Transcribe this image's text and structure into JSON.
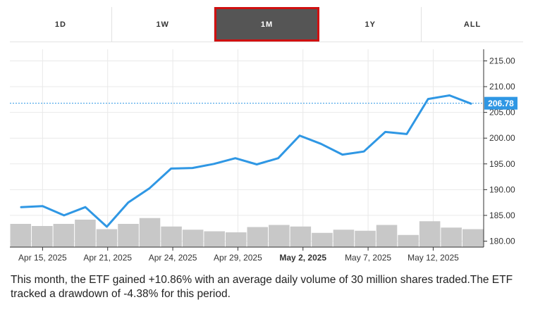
{
  "tabs": [
    {
      "label": "1D",
      "active": false
    },
    {
      "label": "1W",
      "active": false
    },
    {
      "label": "1M",
      "active": true
    },
    {
      "label": "1Y",
      "active": false
    },
    {
      "label": "ALL",
      "active": false
    }
  ],
  "summary_text": "This month, the ETF gained +10.86% with an average daily volume of 30 million shares traded.The ETF tracked a drawdown of -4.38% for this period.",
  "colors": {
    "price_line": "#2f97e4",
    "volume_bar": "#c8c8c8",
    "active_tab_bg": "#555555",
    "active_tab_border": "#d01010",
    "current_price_tag": "#2f97e4"
  },
  "chart_data": {
    "type": "line",
    "x_tick_labels": [
      "Apr 15, 2025",
      "Apr 21, 2025",
      "Apr 24, 2025",
      "Apr 29, 2025",
      "May 2, 2025",
      "May 7, 2025",
      "May 12, 2025"
    ],
    "x_tick_bold": [
      false,
      false,
      false,
      false,
      true,
      false,
      false
    ],
    "y_tick_labels": [
      "215.00",
      "210.00",
      "205.00",
      "200.00",
      "195.00",
      "190.00",
      "185.00",
      "180.00"
    ],
    "ylim": [
      180,
      215
    ],
    "current_price": 206.78,
    "current_price_label": "206.78",
    "series": [
      {
        "values": [
          186.6,
          186.8,
          185.0,
          186.6,
          182.8,
          187.5,
          190.3,
          194.1,
          194.2,
          195.0,
          196.1,
          194.9,
          196.1,
          200.5,
          198.9,
          196.8,
          197.4,
          201.2,
          200.8,
          207.6,
          208.3,
          206.7
        ]
      }
    ],
    "volume": [
      4.4,
      4.0,
      4.4,
      5.2,
      3.4,
      4.4,
      5.5,
      3.9,
      3.3,
      3.0,
      2.8,
      3.8,
      4.2,
      3.9,
      2.7,
      3.3,
      3.1,
      4.2,
      2.3,
      4.9,
      3.7,
      3.4
    ],
    "grid": true
  }
}
